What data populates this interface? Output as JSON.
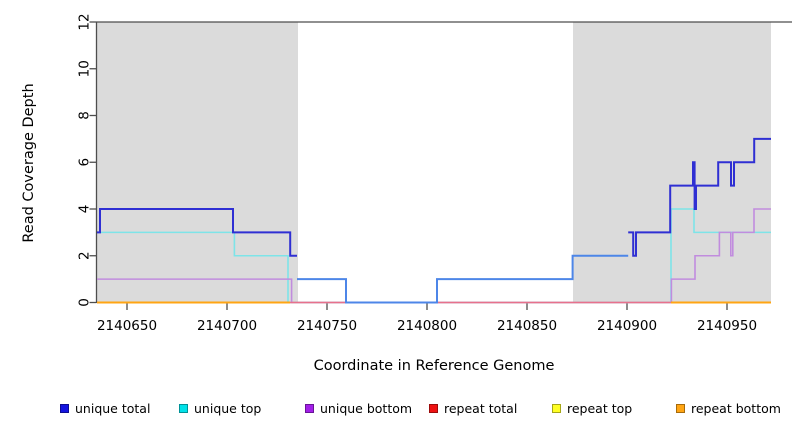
{
  "y_axis": {
    "label": "Read Coverage Depth",
    "ticks": [
      0,
      2,
      4,
      6,
      8,
      10,
      12
    ],
    "range": [
      0,
      12
    ]
  },
  "x_axis": {
    "label": "Coordinate in Reference Genome",
    "ticks": [
      2140650,
      2140700,
      2140750,
      2140800,
      2140850,
      2140900,
      2140950
    ],
    "range": [
      2140635,
      2140972
    ]
  },
  "shaded_regions": [
    [
      2140635,
      2140735.5
    ],
    [
      2140873,
      2140972
    ]
  ],
  "shade_color": "#DBDBDB",
  "axis_color": "#4d4d4d",
  "chart_data": {
    "type": "line",
    "step": true,
    "title": "",
    "xlabel": "Coordinate in Reference Genome",
    "ylabel": "Read Coverage Depth",
    "xlim": [
      2140635,
      2140972
    ],
    "ylim": [
      0,
      12
    ],
    "grid": false,
    "legend_position": "bottom",
    "series": [
      {
        "name": "unique total",
        "z": 6,
        "color": "#2F2FD3",
        "width": 2,
        "color_spans": [
          {
            "until": 2140735,
            "color": "#2F2FD3"
          },
          {
            "until": 2140900.6,
            "color": "#4D86E8"
          },
          {
            "until": 2140972,
            "color": "#2F2FD3"
          }
        ],
        "segments": [
          {
            "steps": [
              [
                2140635,
                3
              ],
              [
                2140636.5,
                4
              ],
              [
                2140703,
                3
              ],
              [
                2140731.6,
                2
              ],
              [
                2140735,
                1
              ],
              [
                2140759.5,
                0
              ],
              [
                2140805,
                1
              ],
              [
                2140872.8,
                2
              ],
              [
                2140900.6,
                3
              ],
              [
                2140903.1,
                2
              ],
              [
                2140904.5,
                3
              ],
              [
                2140921.6,
                5
              ],
              [
                2140933,
                6
              ],
              [
                2140933.8,
                4
              ],
              [
                2140934.5,
                5
              ],
              [
                2140945.6,
                6
              ],
              [
                2140952,
                5
              ],
              [
                2140953.5,
                6
              ],
              [
                2140963.6,
                7
              ]
            ],
            "end": 2140972
          }
        ]
      },
      {
        "name": "unique top",
        "z": 2,
        "color": "#7DE4E8",
        "width": 1.6,
        "segments": [
          {
            "steps": [
              [
                2140635,
                3
              ],
              [
                2140703.7,
                2
              ],
              [
                2140730.5,
                0
              ],
              [
                2140922,
                4
              ],
              [
                2140933.5,
                3
              ]
            ],
            "end": 2140972
          }
        ]
      },
      {
        "name": "unique bottom",
        "z": 3,
        "color": "#C18CDE",
        "width": 1.6,
        "segments": [
          {
            "steps": [
              [
                2140635,
                1
              ],
              [
                2140732.3,
                0
              ],
              [
                2140922.2,
                1
              ],
              [
                2140934,
                2
              ],
              [
                2140946.2,
                3
              ],
              [
                2140951.9,
                2
              ],
              [
                2140952.9,
                3
              ],
              [
                2140963.5,
                4
              ]
            ],
            "end": 2140972
          }
        ]
      },
      {
        "name": "repeat total",
        "z": 4,
        "color": "#E8718C",
        "width": 1.6,
        "segments": [
          {
            "steps": [
              [
                2140731.5,
                0
              ]
            ],
            "end": 2140922
          }
        ]
      },
      {
        "name": "repeat top",
        "z": 1,
        "color": "#FFE81A",
        "width": 1.6,
        "segments": [
          {
            "steps": [
              [
                2140635,
                0
              ]
            ],
            "end": 2140972
          }
        ]
      },
      {
        "name": "repeat bottom",
        "z": 5,
        "color": "#FFA513",
        "width": 2,
        "segments": [
          {
            "steps": [
              [
                2140635,
                0
              ]
            ],
            "end": 2140731.5
          },
          {
            "steps": [
              [
                2140922,
                0
              ]
            ],
            "end": 2140972
          }
        ]
      }
    ]
  },
  "legend": {
    "items": [
      {
        "label": "unique total",
        "color": "#1414E0"
      },
      {
        "label": "unique top",
        "color": "#00E1E8"
      },
      {
        "label": "unique bottom",
        "color": "#A21FE8"
      },
      {
        "label": "repeat total",
        "color": "#EE1212"
      },
      {
        "label": "repeat top",
        "color": "#FFFF24"
      },
      {
        "label": "repeat bottom",
        "color": "#FFA513"
      }
    ]
  }
}
